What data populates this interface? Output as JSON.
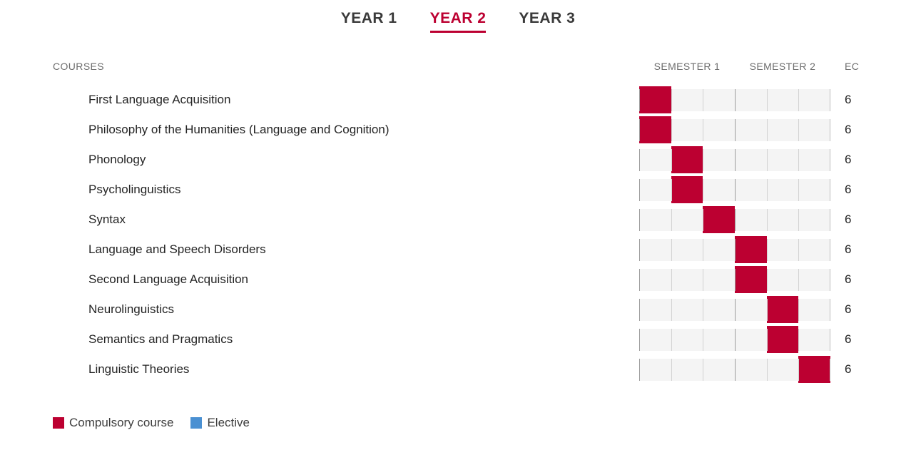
{
  "colors": {
    "compulsory": "#BC0031",
    "elective": "#4A90D2",
    "accent": "#BC0031",
    "track": "#F4F4F4"
  },
  "tabs": [
    {
      "label": "YEAR 1",
      "active": false
    },
    {
      "label": "YEAR 2",
      "active": true
    },
    {
      "label": "YEAR 3",
      "active": false
    }
  ],
  "table": {
    "courses_header": "COURSES",
    "semester1_header": "SEMESTER 1",
    "semester2_header": "SEMESTER 2",
    "ec_header": "EC",
    "periods_per_row": 6,
    "rows": [
      {
        "course": "First Language Acquisition",
        "period": 1,
        "type": "compulsory",
        "ec": "6"
      },
      {
        "course": "Philosophy of the Humanities (Language and Cognition)",
        "period": 1,
        "type": "compulsory",
        "ec": "6"
      },
      {
        "course": "Phonology",
        "period": 2,
        "type": "compulsory",
        "ec": "6"
      },
      {
        "course": "Psycholinguistics",
        "period": 2,
        "type": "compulsory",
        "ec": "6"
      },
      {
        "course": "Syntax",
        "period": 3,
        "type": "compulsory",
        "ec": "6"
      },
      {
        "course": "Language and Speech Disorders",
        "period": 4,
        "type": "compulsory",
        "ec": "6"
      },
      {
        "course": "Second Language Acquisition",
        "period": 4,
        "type": "compulsory",
        "ec": "6"
      },
      {
        "course": "Neurolinguistics",
        "period": 5,
        "type": "compulsory",
        "ec": "6"
      },
      {
        "course": "Semantics and Pragmatics",
        "period": 5,
        "type": "compulsory",
        "ec": "6"
      },
      {
        "course": "Linguistic Theories",
        "period": 6,
        "type": "compulsory",
        "ec": "6"
      }
    ]
  },
  "legend": [
    {
      "label": "Compulsory course",
      "type": "compulsory"
    },
    {
      "label": "Elective",
      "type": "elective"
    }
  ]
}
